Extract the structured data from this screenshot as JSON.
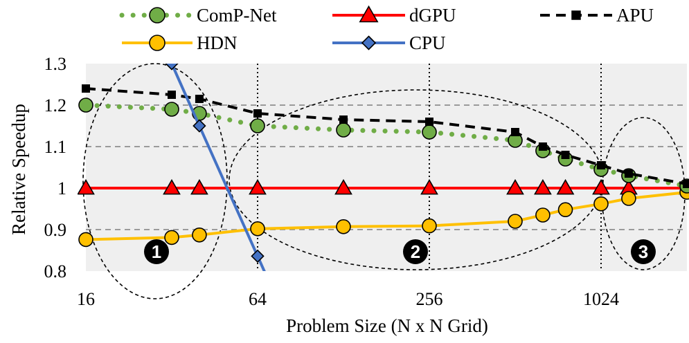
{
  "chart_data": {
    "type": "line",
    "xlabel": "Problem Size (N x N Grid)",
    "ylabel": "Relative Speedup",
    "x_scale": "log2",
    "xlim": [
      16,
      2048
    ],
    "ylim": [
      0.8,
      1.3
    ],
    "x_ticks": [
      16,
      64,
      256,
      1024
    ],
    "x_tick_labels": [
      "16",
      "64",
      "256",
      "1024"
    ],
    "y_ticks": [
      0.8,
      0.9,
      1.0,
      1.1,
      1.2,
      1.3
    ],
    "y_tick_labels": [
      "0.8",
      "0.9",
      "1",
      "1.1",
      "1.2",
      "1.3"
    ],
    "grid": "horizontal dashed (gray) + vertical dotted at 64, 256, 1024",
    "plot_background": "#efefef",
    "legend": {
      "position": "top",
      "columns": 3
    },
    "series": [
      {
        "name": "ComP-Net",
        "color": "#70ad47",
        "line": "dotted",
        "marker": "circle",
        "x": [
          16,
          32,
          40,
          64,
          128,
          256,
          512,
          640,
          768,
          1024,
          1280,
          2048
        ],
        "y": [
          1.2,
          1.19,
          1.18,
          1.15,
          1.14,
          1.135,
          1.115,
          1.09,
          1.07,
          1.045,
          1.03,
          1.005
        ]
      },
      {
        "name": "dGPU",
        "color": "#ff0000",
        "line": "solid",
        "marker": "triangle",
        "x": [
          16,
          32,
          40,
          64,
          128,
          256,
          512,
          640,
          768,
          1024,
          1280,
          2048
        ],
        "y": [
          1.0,
          1.0,
          1.0,
          1.0,
          1.0,
          1.0,
          1.0,
          1.0,
          1.0,
          1.0,
          1.0,
          1.0
        ]
      },
      {
        "name": "APU",
        "color": "#000000",
        "line": "dashed",
        "marker": "square",
        "x": [
          16,
          32,
          40,
          64,
          128,
          256,
          512,
          640,
          768,
          1024,
          1280,
          2048
        ],
        "y": [
          1.24,
          1.225,
          1.215,
          1.18,
          1.165,
          1.16,
          1.135,
          1.1,
          1.08,
          1.055,
          1.035,
          1.01
        ]
      },
      {
        "name": "HDN",
        "color": "#ffc000",
        "line": "solid",
        "marker": "circle",
        "x": [
          16,
          32,
          40,
          64,
          128,
          256,
          512,
          640,
          768,
          1024,
          1280,
          2048
        ],
        "y": [
          0.876,
          0.881,
          0.887,
          0.902,
          0.907,
          0.909,
          0.92,
          0.935,
          0.948,
          0.962,
          0.975,
          0.99
        ]
      },
      {
        "name": "CPU",
        "color": "#4472c4",
        "line": "solid",
        "marker": "diamond",
        "x": [
          32,
          40,
          64
        ],
        "y": [
          1.3,
          1.15,
          0.836
        ]
      }
    ],
    "annotations": [
      {
        "label": "1",
        "region": "small sizes (16–48)"
      },
      {
        "label": "2",
        "region": "medium sizes (48–1024)"
      },
      {
        "label": "3",
        "region": "large sizes (>1024)"
      }
    ]
  }
}
